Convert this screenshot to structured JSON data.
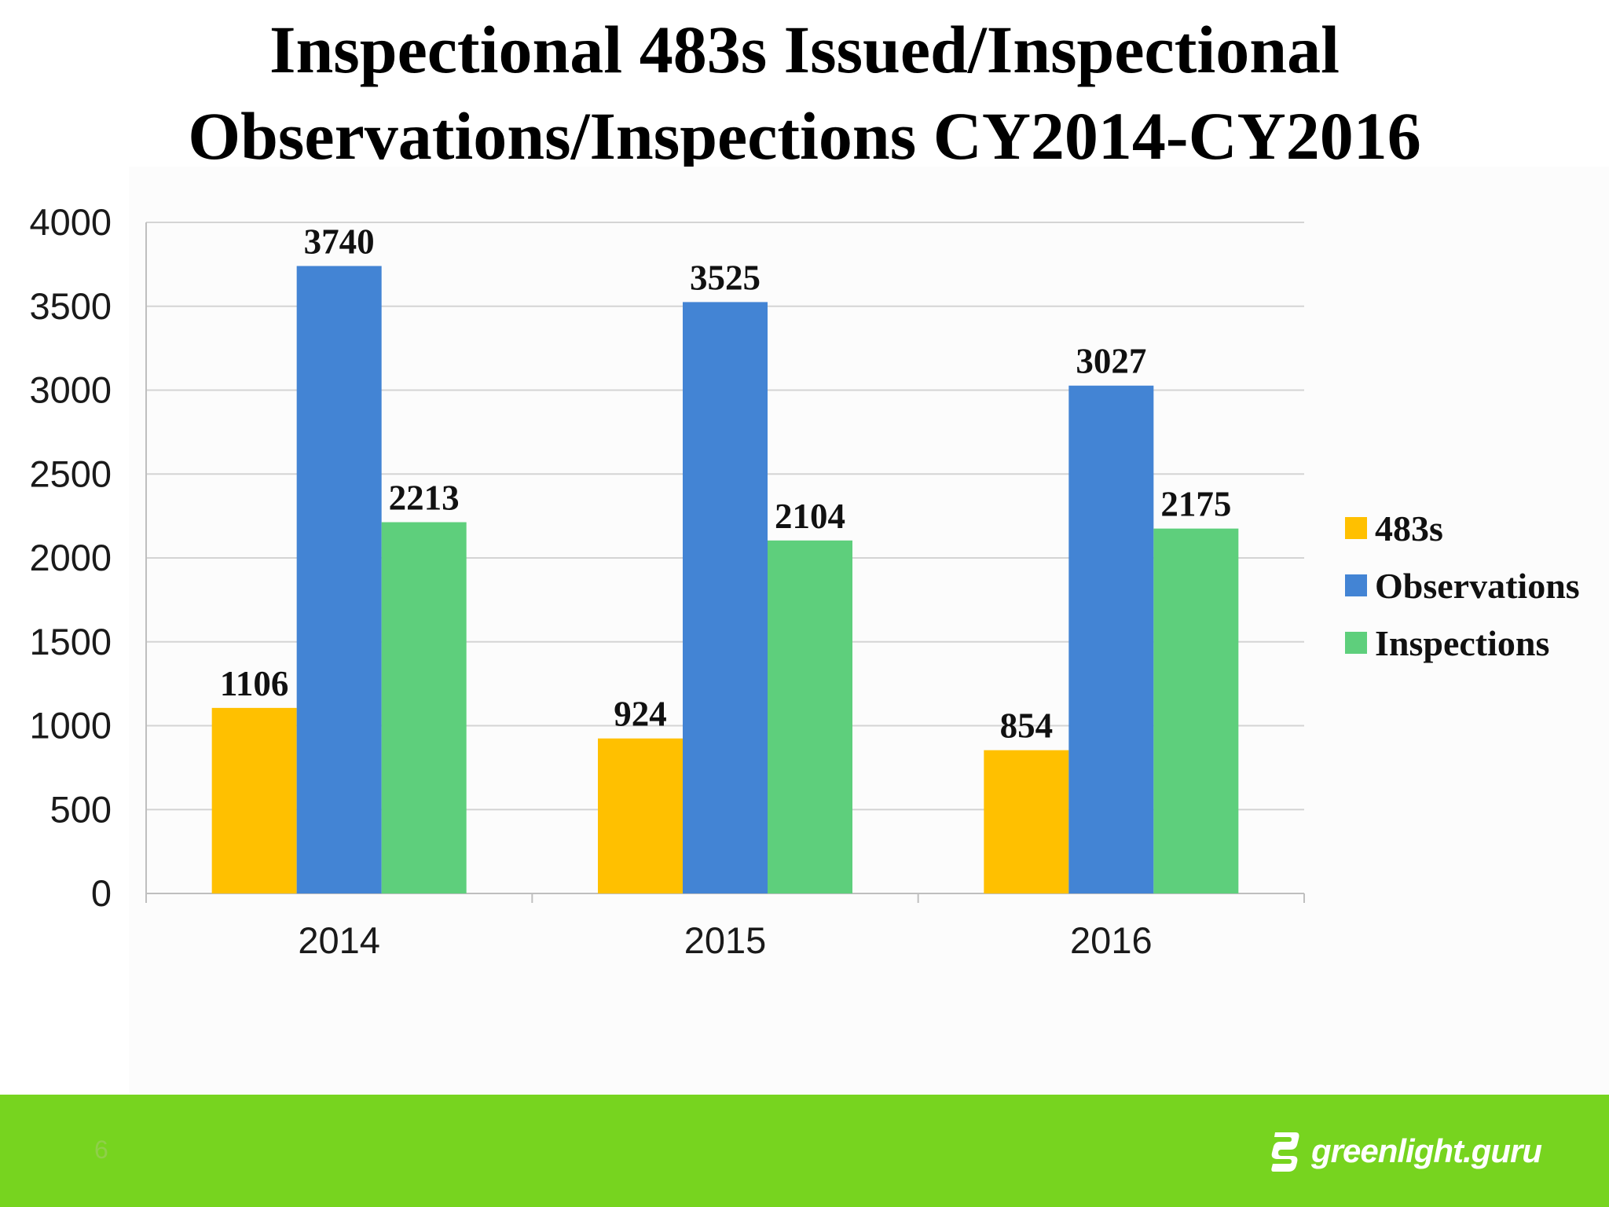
{
  "slide": {
    "title_line1": "Inspectional 483s Issued/Inspectional",
    "title_line2": "Observations/Inspections CY2014-CY2016",
    "page_number": "6",
    "brand": "greenlight.guru",
    "footer_color": "#77d41f"
  },
  "chart_data": {
    "type": "bar",
    "title": "Inspectional 483s Issued/Inspectional Observations/Inspections CY2014-CY2016",
    "categories": [
      "2014",
      "2015",
      "2016"
    ],
    "series": [
      {
        "name": "483s",
        "color": "#ffc000",
        "values": [
          1106,
          924,
          854
        ]
      },
      {
        "name": "Observations",
        "color": "#4384d4",
        "values": [
          3740,
          3525,
          3027
        ]
      },
      {
        "name": "Inspections",
        "color": "#5ecf7c",
        "values": [
          2213,
          2104,
          2175
        ]
      }
    ],
    "yticks": [
      "0",
      "500",
      "1000",
      "1500",
      "2000",
      "2500",
      "3000",
      "3500",
      "4000"
    ],
    "ylim": [
      0,
      4000
    ],
    "grid": true,
    "legend": "right"
  }
}
